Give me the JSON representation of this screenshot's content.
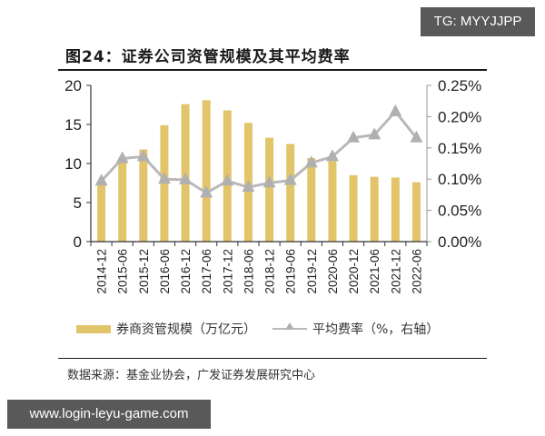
{
  "title": "图24：证券公司资管规模及其平均费率",
  "watermarks": {
    "top_right": "TG: MYYJJPP",
    "bottom_left": "www.login-leyu-game.com"
  },
  "legend": {
    "bar_label": "券商资管规模（万亿元）",
    "line_label": "平均费率（%，右轴）"
  },
  "source": "数据来源：基金业协会，广发证券发展研究中心",
  "colors": {
    "bar": "#e2c46a",
    "line": "#b9b9b9",
    "marker": "#b0b0b0",
    "axis": "#333333"
  },
  "left_axis_ticks": [
    "0",
    "5",
    "10",
    "15",
    "20"
  ],
  "right_axis_ticks": [
    "0.00%",
    "0.05%",
    "0.10%",
    "0.15%",
    "0.20%",
    "0.25%"
  ],
  "chart_data": {
    "type": "bar",
    "title": "图24：证券公司资管规模及其平均费率",
    "categories": [
      "2014-12",
      "2015-06",
      "2015-12",
      "2016-06",
      "2016-12",
      "2017-06",
      "2017-12",
      "2018-06",
      "2018-12",
      "2019-06",
      "2019-12",
      "2020-06",
      "2020-12",
      "2021-06",
      "2021-12",
      "2022-06"
    ],
    "series": [
      {
        "name": "券商资管规模（万亿元）",
        "type": "bar",
        "axis": "left",
        "values": [
          7.6,
          10.6,
          11.8,
          14.9,
          17.6,
          18.1,
          16.8,
          15.2,
          13.3,
          12.5,
          10.7,
          10.3,
          8.5,
          8.3,
          8.2,
          7.6
        ]
      },
      {
        "name": "平均费率（%，右轴）",
        "type": "line",
        "axis": "right",
        "marker": "triangle",
        "values": [
          0.097,
          0.133,
          0.136,
          0.1,
          0.099,
          0.078,
          0.097,
          0.087,
          0.094,
          0.098,
          0.126,
          0.136,
          0.166,
          0.171,
          0.208,
          0.166
        ]
      }
    ],
    "xlabel": "",
    "ylabel": "",
    "ylim": [
      0,
      20
    ],
    "y2lim": [
      0,
      0.25
    ],
    "grid": false,
    "legend_position": "bottom"
  }
}
